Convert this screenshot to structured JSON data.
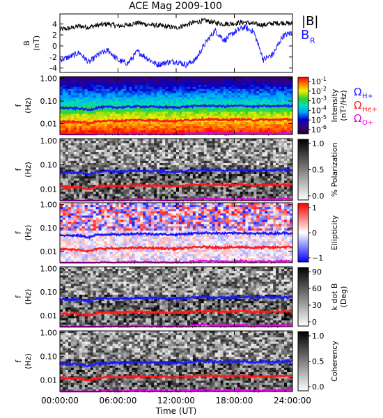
{
  "title": "ACE Mag 2009-100",
  "x_axis": {
    "label": "Time (UT)",
    "ticks": [
      "00:00:00",
      "06:00:00",
      "12:00:00",
      "18:00:00",
      "24:00:00"
    ],
    "hours": [
      0,
      6,
      12,
      18,
      24
    ],
    "range": [
      0,
      24
    ]
  },
  "legend_top": {
    "b_mag": "|B|",
    "b_r": "B",
    "b_r_sub": "R"
  },
  "legend_freq": [
    {
      "sym": "Ω",
      "sub": "H+",
      "color": "#1a1aff"
    },
    {
      "sym": "Ω",
      "sub": "He+",
      "color": "#ff1a1a"
    },
    {
      "sym": "Ω",
      "sub": "O+",
      "color": "#e600e6"
    }
  ],
  "colors": {
    "b_mag": "#000000",
    "b_r": "#1a1aff",
    "h_cyclotron": "#1a1aff",
    "he_cyclotron": "#ff1a1a",
    "o_cyclotron": "#e600e6"
  },
  "freq_axis": {
    "label_top": "f",
    "label_bottom": "(Hz)",
    "ticks": [
      "1.00",
      "0.10",
      "0.01"
    ],
    "tick_values": [
      1.0,
      0.1,
      0.01
    ],
    "range": [
      0.0033,
      1.2
    ],
    "scale": "log"
  },
  "panels": [
    {
      "id": "field",
      "ylabel_top": "B",
      "ylabel_bottom": "(nT)",
      "ticks": [
        "4",
        "2",
        "0",
        "-2",
        "-4"
      ],
      "tick_values": [
        4,
        2,
        0,
        -2,
        -4
      ],
      "range": [
        -4.8,
        5.8
      ]
    },
    {
      "id": "intensity",
      "kind": "spectrogram",
      "colorbar": {
        "type": "rainbow",
        "label_top": "Intensity",
        "label_bottom": "(nT²/Hz)",
        "ticks": [
          {
            "base": "10",
            "exp": "-1"
          },
          {
            "base": "10",
            "exp": "-2"
          },
          {
            "base": "10",
            "exp": "-3"
          },
          {
            "base": "10",
            "exp": "-4"
          },
          {
            "base": "10",
            "exp": "-5"
          },
          {
            "base": "10",
            "exp": "-6"
          }
        ]
      }
    },
    {
      "id": "polarization",
      "kind": "gray",
      "colorbar": {
        "type": "gray",
        "label": "% Polarization",
        "ticks": [
          "1.0",
          "0.5",
          "0.0"
        ]
      }
    },
    {
      "id": "ellipticity",
      "kind": "bwr",
      "colorbar": {
        "type": "bwr",
        "label": "Ellipticity",
        "ticks": [
          "1",
          "0",
          "−1"
        ]
      }
    },
    {
      "id": "kdotb",
      "kind": "gray",
      "colorbar": {
        "type": "gray",
        "label_top": "k dot B",
        "label_bottom": "(Deg)",
        "ticks": [
          "90",
          "60",
          "30",
          "0"
        ]
      }
    },
    {
      "id": "coherency",
      "kind": "gray",
      "colorbar": {
        "type": "gray",
        "label": "Coherency",
        "ticks": [
          "1.0",
          "0.5",
          "0.0"
        ]
      }
    }
  ],
  "chart_data": {
    "type": "line",
    "title": "ACE Mag 2009-100",
    "xlabel": "Time (UT)",
    "xlim": [
      0,
      24
    ],
    "x": [
      0,
      1,
      2,
      3,
      4,
      5,
      6,
      7,
      8,
      9,
      10,
      11,
      12,
      13,
      14,
      15,
      16,
      17,
      18,
      19,
      20,
      21,
      22,
      23,
      24
    ],
    "field_panel": {
      "ylabel": "B (nT)",
      "ylim": [
        -4.8,
        5.8
      ],
      "series": [
        {
          "name": "|B|",
          "values": [
            3.0,
            3.2,
            3.6,
            3.4,
            3.8,
            4.0,
            3.6,
            3.8,
            4.2,
            3.9,
            3.7,
            3.5,
            3.3,
            3.8,
            4.3,
            4.6,
            4.2,
            4.0,
            4.1,
            4.3,
            4.0,
            3.8,
            4.1,
            4.2,
            4.0
          ]
        },
        {
          "name": "BR",
          "values": [
            -2.5,
            -2.0,
            -1.2,
            -3.0,
            -1.5,
            -0.8,
            -2.6,
            -3.2,
            -1.0,
            -2.2,
            -3.4,
            -3.0,
            -2.8,
            -3.4,
            -2.5,
            0.5,
            2.8,
            1.0,
            2.5,
            3.4,
            2.6,
            -2.5,
            -1.5,
            1.8,
            2.5
          ]
        }
      ]
    },
    "frequency_panels": {
      "ylabel": "f (Hz)",
      "scale": "log",
      "ylim": [
        0.0033,
        1.2
      ],
      "series": [
        {
          "name": "ΩH+",
          "values": [
            0.05,
            0.048,
            0.047,
            0.04,
            0.052,
            0.054,
            0.052,
            0.055,
            0.058,
            0.056,
            0.055,
            0.053,
            0.052,
            0.056,
            0.06,
            0.062,
            0.06,
            0.058,
            0.06,
            0.062,
            0.056,
            0.06,
            0.058,
            0.062,
            0.06
          ]
        },
        {
          "name": "ΩHe+",
          "values": [
            0.0125,
            0.012,
            0.0118,
            0.01,
            0.013,
            0.0135,
            0.013,
            0.0138,
            0.0145,
            0.014,
            0.0138,
            0.0132,
            0.013,
            0.014,
            0.015,
            0.0155,
            0.015,
            0.0145,
            0.015,
            0.0155,
            0.014,
            0.015,
            0.0145,
            0.0155,
            0.015
          ]
        },
        {
          "name": "ΩO+",
          "values": [
            0.0032,
            0.003,
            0.003,
            0.0028,
            0.0033,
            0.0034,
            0.0033,
            0.0034,
            0.0036,
            0.0035,
            0.0034,
            0.0033,
            0.0033,
            0.0035,
            0.0037,
            0.0039,
            0.0037,
            0.0036,
            0.0037,
            0.0039,
            0.0035,
            0.0037,
            0.0036,
            0.0039,
            0.0037
          ]
        }
      ]
    }
  }
}
